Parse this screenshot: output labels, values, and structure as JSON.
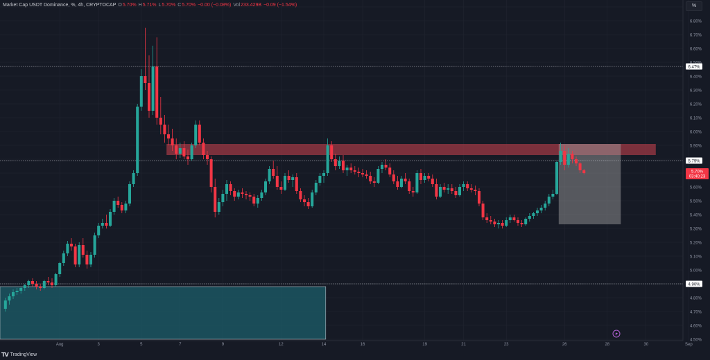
{
  "legend": {
    "symbol": "Market Cap USDT Dominance, %, 4h, CRYPTOCAP",
    "o_label": "O",
    "o_value": "5.70%",
    "h_label": "H",
    "h_value": "5.71%",
    "l_label": "L",
    "l_value": "5.70%",
    "c_label": "C",
    "c_value": "5.70%",
    "change": "−0.00 (−0.08%)",
    "vol_label": "Vol",
    "vol_value": "233.429B",
    "vol_change": "−0.09 (−1.54%)"
  },
  "axis_unit_button": "%",
  "footer": {
    "logo": "TV",
    "brand": "TradingView"
  },
  "icon_names": {
    "logo": "tradingview-logo-icon",
    "flash": "lightning-icon"
  },
  "colors": {
    "background": "#161a25",
    "up": "#26a69a",
    "down": "#f23645",
    "supply_zone": "#9e3844",
    "demand_zone": "#1c5d6a",
    "gray_box": "#a3a3a3",
    "price_badge": "#f23645",
    "axis_text": "#8f94a3",
    "grid": "#232733"
  },
  "chart_data": {
    "type": "candlestick",
    "title": "Market Cap USDT Dominance, %, 4h, CRYPTOCAP",
    "ylabel": "%",
    "ylim": [
      4.5,
      6.9
    ],
    "y_ticks": [
      "4.50%",
      "4.60%",
      "4.70%",
      "4.80%",
      "4.90%",
      "5.00%",
      "5.10%",
      "5.20%",
      "5.30%",
      "5.40%",
      "5.50%",
      "5.60%",
      "5.70%",
      "5.80%",
      "5.90%",
      "6.00%",
      "6.10%",
      "6.20%",
      "6.30%",
      "6.40%",
      "6.50%",
      "6.60%",
      "6.70%",
      "6.80%",
      "6.90%"
    ],
    "x_ticks": [
      {
        "label": "Aug",
        "index": 14
      },
      {
        "label": "3",
        "index": 24
      },
      {
        "label": "5",
        "index": 35
      },
      {
        "label": "7",
        "index": 45
      },
      {
        "label": "9",
        "index": 56
      },
      {
        "label": "12",
        "index": 71
      },
      {
        "label": "14",
        "index": 82
      },
      {
        "label": "16",
        "index": 92
      },
      {
        "label": "19",
        "index": 108
      },
      {
        "label": "21",
        "index": 118
      },
      {
        "label": "23",
        "index": 129
      },
      {
        "label": "26",
        "index": 144
      },
      {
        "label": "28",
        "index": 155
      },
      {
        "label": "30",
        "index": 165
      },
      {
        "label": "Sep",
        "index": 176
      }
    ],
    "horizontal_lines": [
      {
        "value": 6.47,
        "label": "6.47%"
      },
      {
        "value": 5.79,
        "label": "5.79%"
      },
      {
        "value": 4.9,
        "label": "4.90%"
      }
    ],
    "current_price": {
      "value": 5.7,
      "label": "5.70%",
      "countdown": "03:40:23"
    },
    "zones": [
      {
        "name": "supply",
        "from_index": 42,
        "to_index": 167,
        "low": 5.83,
        "high": 5.91
      },
      {
        "name": "demand",
        "from_index": -1,
        "to_index": 82,
        "low": 4.5,
        "high": 4.88
      },
      {
        "name": "range-box",
        "from_index": 143,
        "to_index": 158,
        "low": 5.33,
        "high": 5.91
      }
    ],
    "ohlc": [
      [
        4.72,
        4.8,
        4.7,
        4.78
      ],
      [
        4.78,
        4.83,
        4.75,
        4.81
      ],
      [
        4.81,
        4.86,
        4.79,
        4.84
      ],
      [
        4.84,
        4.87,
        4.82,
        4.85
      ],
      [
        4.85,
        4.88,
        4.83,
        4.87
      ],
      [
        4.87,
        4.9,
        4.85,
        4.89
      ],
      [
        4.89,
        4.93,
        4.87,
        4.92
      ],
      [
        4.92,
        4.94,
        4.88,
        4.9
      ],
      [
        4.9,
        4.92,
        4.86,
        4.88
      ],
      [
        4.88,
        4.9,
        4.85,
        4.87
      ],
      [
        4.87,
        4.93,
        4.86,
        4.92
      ],
      [
        4.92,
        4.95,
        4.89,
        4.91
      ],
      [
        4.91,
        4.94,
        4.87,
        4.89
      ],
      [
        4.89,
        4.98,
        4.88,
        4.97
      ],
      [
        4.97,
        5.06,
        4.95,
        5.05
      ],
      [
        5.05,
        5.14,
        5.03,
        5.12
      ],
      [
        5.12,
        5.21,
        5.1,
        5.19
      ],
      [
        5.19,
        5.23,
        5.14,
        5.17
      ],
      [
        5.17,
        5.19,
        5.02,
        5.04
      ],
      [
        5.04,
        5.2,
        5.02,
        5.18
      ],
      [
        5.18,
        5.23,
        5.09,
        5.11
      ],
      [
        5.11,
        5.14,
        5.01,
        5.04
      ],
      [
        5.04,
        5.13,
        5.02,
        5.11
      ],
      [
        5.11,
        5.27,
        5.09,
        5.25
      ],
      [
        5.25,
        5.34,
        5.23,
        5.32
      ],
      [
        5.32,
        5.37,
        5.3,
        5.34
      ],
      [
        5.34,
        5.4,
        5.3,
        5.32
      ],
      [
        5.32,
        5.44,
        5.31,
        5.42
      ],
      [
        5.42,
        5.52,
        5.4,
        5.5
      ],
      [
        5.5,
        5.53,
        5.45,
        5.47
      ],
      [
        5.47,
        5.49,
        5.41,
        5.43
      ],
      [
        5.43,
        5.5,
        5.41,
        5.48
      ],
      [
        5.48,
        5.64,
        5.46,
        5.62
      ],
      [
        5.62,
        5.72,
        5.6,
        5.7
      ],
      [
        5.7,
        6.2,
        5.68,
        6.18
      ],
      [
        6.18,
        6.45,
        6.15,
        6.4
      ],
      [
        6.4,
        6.75,
        6.3,
        6.35
      ],
      [
        6.35,
        6.55,
        6.1,
        6.15
      ],
      [
        6.15,
        6.62,
        6.12,
        6.47
      ],
      [
        6.47,
        6.68,
        6.05,
        6.1
      ],
      [
        6.1,
        6.25,
        5.98,
        6.05
      ],
      [
        6.05,
        6.12,
        5.92,
        5.98
      ],
      [
        5.98,
        6.05,
        5.9,
        5.95
      ],
      [
        5.95,
        6.02,
        5.86,
        5.9
      ],
      [
        5.9,
        5.95,
        5.8,
        5.84
      ],
      [
        5.84,
        5.92,
        5.81,
        5.88
      ],
      [
        5.88,
        5.93,
        5.8,
        5.82
      ],
      [
        5.82,
        5.87,
        5.76,
        5.8
      ],
      [
        5.8,
        5.92,
        5.79,
        5.9
      ],
      [
        5.9,
        6.08,
        5.88,
        6.05
      ],
      [
        6.05,
        6.08,
        5.9,
        5.92
      ],
      [
        5.92,
        5.95,
        5.8,
        5.83
      ],
      [
        5.83,
        5.86,
        5.76,
        5.8
      ],
      [
        5.8,
        5.82,
        5.56,
        5.6
      ],
      [
        5.6,
        5.66,
        5.38,
        5.42
      ],
      [
        5.42,
        5.52,
        5.4,
        5.49
      ],
      [
        5.49,
        5.58,
        5.46,
        5.55
      ],
      [
        5.55,
        5.65,
        5.5,
        5.62
      ],
      [
        5.62,
        5.64,
        5.54,
        5.57
      ],
      [
        5.57,
        5.59,
        5.5,
        5.53
      ],
      [
        5.53,
        5.58,
        5.51,
        5.56
      ],
      [
        5.56,
        5.59,
        5.52,
        5.55
      ],
      [
        5.55,
        5.57,
        5.51,
        5.54
      ],
      [
        5.54,
        5.56,
        5.5,
        5.53
      ],
      [
        5.53,
        5.55,
        5.46,
        5.48
      ],
      [
        5.48,
        5.54,
        5.45,
        5.52
      ],
      [
        5.52,
        5.58,
        5.5,
        5.56
      ],
      [
        5.56,
        5.66,
        5.54,
        5.64
      ],
      [
        5.64,
        5.75,
        5.62,
        5.73
      ],
      [
        5.73,
        5.79,
        5.66,
        5.68
      ],
      [
        5.68,
        5.75,
        5.58,
        5.6
      ],
      [
        5.6,
        5.64,
        5.55,
        5.58
      ],
      [
        5.58,
        5.7,
        5.57,
        5.68
      ],
      [
        5.68,
        5.72,
        5.63,
        5.65
      ],
      [
        5.65,
        5.69,
        5.6,
        5.67
      ],
      [
        5.67,
        5.7,
        5.55,
        5.57
      ],
      [
        5.57,
        5.59,
        5.49,
        5.51
      ],
      [
        5.51,
        5.54,
        5.46,
        5.49
      ],
      [
        5.49,
        5.52,
        5.44,
        5.46
      ],
      [
        5.46,
        5.58,
        5.45,
        5.56
      ],
      [
        5.56,
        5.65,
        5.54,
        5.63
      ],
      [
        5.63,
        5.7,
        5.61,
        5.68
      ],
      [
        5.68,
        5.72,
        5.63,
        5.7
      ],
      [
        5.7,
        5.95,
        5.68,
        5.9
      ],
      [
        5.9,
        5.93,
        5.78,
        5.8
      ],
      [
        5.8,
        5.84,
        5.72,
        5.75
      ],
      [
        5.75,
        5.82,
        5.73,
        5.79
      ],
      [
        5.79,
        5.83,
        5.7,
        5.72
      ],
      [
        5.72,
        5.76,
        5.68,
        5.74
      ],
      [
        5.74,
        5.77,
        5.7,
        5.72
      ],
      [
        5.72,
        5.75,
        5.69,
        5.71
      ],
      [
        5.71,
        5.74,
        5.67,
        5.7
      ],
      [
        5.7,
        5.73,
        5.67,
        5.69
      ],
      [
        5.69,
        5.72,
        5.66,
        5.68
      ],
      [
        5.68,
        5.71,
        5.62,
        5.64
      ],
      [
        5.64,
        5.67,
        5.6,
        5.63
      ],
      [
        5.63,
        5.75,
        5.62,
        5.73
      ],
      [
        5.73,
        5.78,
        5.7,
        5.76
      ],
      [
        5.76,
        5.8,
        5.72,
        5.74
      ],
      [
        5.74,
        5.77,
        5.67,
        5.69
      ],
      [
        5.69,
        5.72,
        5.62,
        5.64
      ],
      [
        5.64,
        5.68,
        5.58,
        5.6
      ],
      [
        5.6,
        5.68,
        5.59,
        5.66
      ],
      [
        5.66,
        5.7,
        5.62,
        5.64
      ],
      [
        5.64,
        5.66,
        5.55,
        5.57
      ],
      [
        5.57,
        5.6,
        5.53,
        5.56
      ],
      [
        5.56,
        5.72,
        5.55,
        5.7
      ],
      [
        5.7,
        5.73,
        5.62,
        5.65
      ],
      [
        5.65,
        5.7,
        5.63,
        5.68
      ],
      [
        5.68,
        5.7,
        5.64,
        5.66
      ],
      [
        5.66,
        5.69,
        5.6,
        5.62
      ],
      [
        5.62,
        5.66,
        5.51,
        5.53
      ],
      [
        5.53,
        5.62,
        5.52,
        5.6
      ],
      [
        5.6,
        5.63,
        5.56,
        5.58
      ],
      [
        5.58,
        5.62,
        5.55,
        5.59
      ],
      [
        5.59,
        5.62,
        5.55,
        5.57
      ],
      [
        5.57,
        5.6,
        5.52,
        5.54
      ],
      [
        5.54,
        5.62,
        5.53,
        5.6
      ],
      [
        5.6,
        5.64,
        5.57,
        5.62
      ],
      [
        5.62,
        5.64,
        5.57,
        5.59
      ],
      [
        5.59,
        5.62,
        5.56,
        5.58
      ],
      [
        5.58,
        5.61,
        5.54,
        5.57
      ],
      [
        5.57,
        5.59,
        5.46,
        5.48
      ],
      [
        5.48,
        5.5,
        5.36,
        5.38
      ],
      [
        5.38,
        5.41,
        5.34,
        5.36
      ],
      [
        5.36,
        5.39,
        5.33,
        5.35
      ],
      [
        5.35,
        5.37,
        5.31,
        5.33
      ],
      [
        5.33,
        5.36,
        5.3,
        5.34
      ],
      [
        5.34,
        5.36,
        5.3,
        5.32
      ],
      [
        5.32,
        5.38,
        5.31,
        5.36
      ],
      [
        5.36,
        5.4,
        5.34,
        5.38
      ],
      [
        5.38,
        5.4,
        5.35,
        5.36
      ],
      [
        5.36,
        5.38,
        5.32,
        5.34
      ],
      [
        5.34,
        5.36,
        5.31,
        5.33
      ],
      [
        5.33,
        5.38,
        5.32,
        5.37
      ],
      [
        5.37,
        5.41,
        5.35,
        5.39
      ],
      [
        5.39,
        5.42,
        5.37,
        5.41
      ],
      [
        5.41,
        5.45,
        5.39,
        5.43
      ],
      [
        5.43,
        5.47,
        5.41,
        5.45
      ],
      [
        5.45,
        5.5,
        5.43,
        5.48
      ],
      [
        5.48,
        5.55,
        5.46,
        5.53
      ],
      [
        5.53,
        5.58,
        5.51,
        5.55
      ],
      [
        5.55,
        5.79,
        5.54,
        5.78
      ],
      [
        5.78,
        5.92,
        5.76,
        5.86
      ],
      [
        5.86,
        5.9,
        5.72,
        5.76
      ],
      [
        5.76,
        5.88,
        5.74,
        5.84
      ],
      [
        5.84,
        5.86,
        5.77,
        5.8
      ],
      [
        5.8,
        5.82,
        5.75,
        5.77
      ],
      [
        5.77,
        5.78,
        5.7,
        5.72
      ],
      [
        5.72,
        5.73,
        5.69,
        5.7
      ]
    ]
  }
}
